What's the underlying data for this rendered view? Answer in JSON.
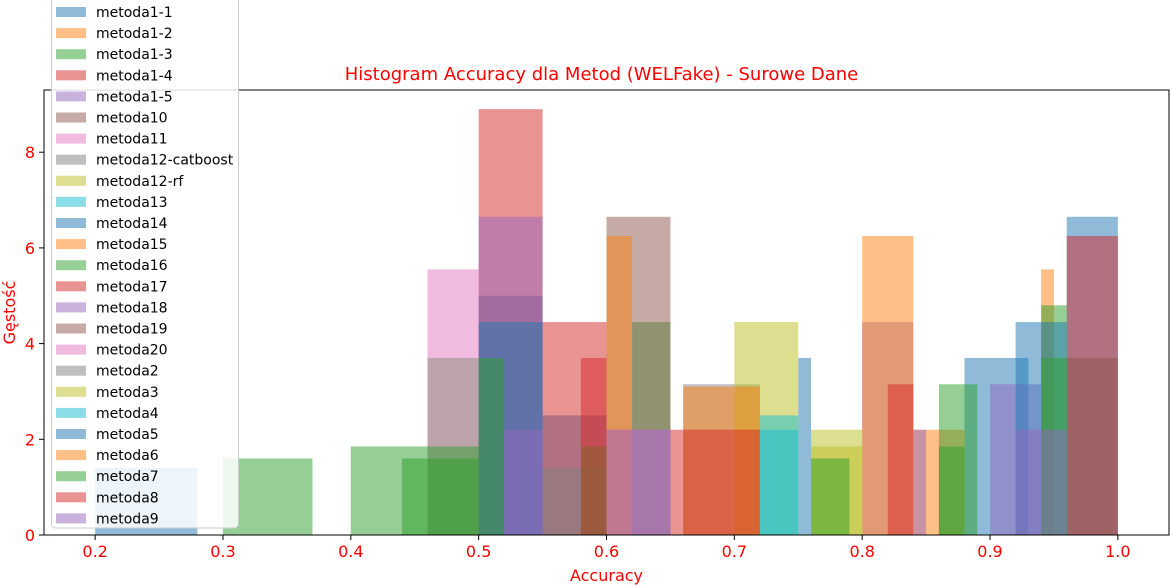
{
  "chart_data": {
    "type": "histogram",
    "title": "Histogram Accuracy dla Metod (WELFake) - Surowe Dane",
    "xlabel": "Accuracy",
    "ylabel": "Gęstość",
    "xlim": [
      0.16,
      1.04
    ],
    "ylim": [
      0,
      9.3
    ],
    "xticks": [
      0.2,
      0.3,
      0.4,
      0.5,
      0.6,
      0.7,
      0.8,
      0.9,
      1.0
    ],
    "xtick_labels": [
      "0.2",
      "0.3",
      "0.4",
      "0.5",
      "0.6",
      "0.7",
      "0.8",
      "0.9",
      "1.0"
    ],
    "yticks": [
      0,
      2,
      4,
      6,
      8
    ],
    "ytick_labels": [
      "0",
      "2",
      "4",
      "6",
      "8"
    ],
    "grid": false,
    "legend_position": "upper-left",
    "colors": [
      "#1f77b4",
      "#ff7f0e",
      "#2ca02c",
      "#d62728",
      "#9467bd",
      "#8c564b",
      "#e377c2",
      "#7f7f7f",
      "#bcbd22",
      "#17becf"
    ],
    "series": [
      {
        "name": "metoda1-1",
        "bins": [
          [
            0.2,
            0.28,
            1.4
          ],
          [
            0.5,
            0.55,
            5.0
          ],
          [
            0.55,
            0.6,
            2.5
          ],
          [
            0.75,
            0.76,
            3.7
          ],
          [
            0.88,
            0.93,
            3.7
          ]
        ]
      },
      {
        "name": "metoda1-2",
        "bins": [
          [
            0.94,
            0.95,
            5.55
          ]
        ]
      },
      {
        "name": "metoda1-3",
        "bins": [
          [
            0.3,
            0.37,
            1.6
          ],
          [
            0.46,
            0.5,
            3.7
          ],
          [
            0.62,
            0.65,
            4.45
          ],
          [
            0.94,
            0.96,
            4.8
          ]
        ]
      },
      {
        "name": "metoda1-4",
        "bins": [
          [
            0.5,
            0.55,
            8.9
          ],
          [
            0.55,
            0.6,
            4.45
          ]
        ]
      },
      {
        "name": "metoda1-5",
        "bins": [
          [
            0.5,
            0.55,
            6.65
          ],
          [
            0.8,
            0.84,
            4.45
          ]
        ]
      },
      {
        "name": "metoda10",
        "bins": [
          [
            0.6,
            0.65,
            6.65
          ]
        ]
      },
      {
        "name": "metoda11",
        "bins": [
          [
            0.46,
            0.5,
            5.55
          ]
        ]
      },
      {
        "name": "metoda12-catboost",
        "bins": [
          [
            0.66,
            0.72,
            3.15
          ]
        ]
      },
      {
        "name": "metoda12-rf",
        "bins": [
          [
            0.7,
            0.75,
            4.45
          ],
          [
            0.76,
            0.8,
            2.2
          ]
        ]
      },
      {
        "name": "metoda13",
        "bins": [
          [
            0.72,
            0.75,
            2.5
          ]
        ]
      },
      {
        "name": "metoda14",
        "bins": [
          [
            0.96,
            1.0,
            6.65
          ]
        ]
      },
      {
        "name": "metoda15",
        "bins": [
          [
            0.84,
            0.88,
            2.2
          ]
        ]
      },
      {
        "name": "metoda16",
        "bins": [
          [
            0.86,
            0.89,
            3.15
          ]
        ]
      },
      {
        "name": "metoda17",
        "bins": [
          [
            0.96,
            1.0,
            6.25
          ]
        ]
      },
      {
        "name": "metoda18",
        "bins": [
          [
            0.9,
            0.94,
            3.15
          ]
        ]
      },
      {
        "name": "metoda19",
        "bins": [
          [
            0.96,
            1.0,
            3.7
          ]
        ]
      },
      {
        "name": "metoda20",
        "bins": [
          [
            0.6,
            0.65,
            2.2
          ]
        ]
      },
      {
        "name": "metoda2",
        "bins": [
          [
            0.55,
            0.6,
            1.4
          ]
        ]
      },
      {
        "name": "metoda3",
        "bins": [
          [
            0.76,
            0.8,
            1.85
          ]
        ]
      },
      {
        "name": "metoda4",
        "bins": [
          [
            0.72,
            0.75,
            2.2
          ]
        ]
      },
      {
        "name": "metoda5",
        "bins": [
          [
            0.5,
            0.55,
            4.45
          ],
          [
            0.92,
            0.96,
            4.45
          ]
        ]
      },
      {
        "name": "metoda6",
        "bins": [
          [
            0.6,
            0.62,
            6.25
          ],
          [
            0.66,
            0.72,
            3.1
          ],
          [
            0.8,
            0.84,
            6.25
          ]
        ]
      },
      {
        "name": "metoda7",
        "bins": [
          [
            0.4,
            0.5,
            1.85
          ],
          [
            0.44,
            0.5,
            1.6
          ],
          [
            0.5,
            0.52,
            3.7
          ],
          [
            0.58,
            0.6,
            1.85
          ],
          [
            0.76,
            0.79,
            1.6
          ],
          [
            0.86,
            0.88,
            1.85
          ],
          [
            0.94,
            0.96,
            3.7
          ]
        ]
      },
      {
        "name": "metoda8",
        "bins": [
          [
            0.58,
            0.6,
            3.7
          ],
          [
            0.65,
            0.72,
            2.2
          ],
          [
            0.82,
            0.84,
            3.15
          ]
        ]
      },
      {
        "name": "metoda9",
        "bins": [
          [
            0.52,
            0.55,
            2.2
          ],
          [
            0.6,
            0.65,
            2.2
          ],
          [
            0.84,
            0.85,
            2.2
          ],
          [
            0.92,
            0.96,
            2.2
          ]
        ]
      }
    ]
  }
}
